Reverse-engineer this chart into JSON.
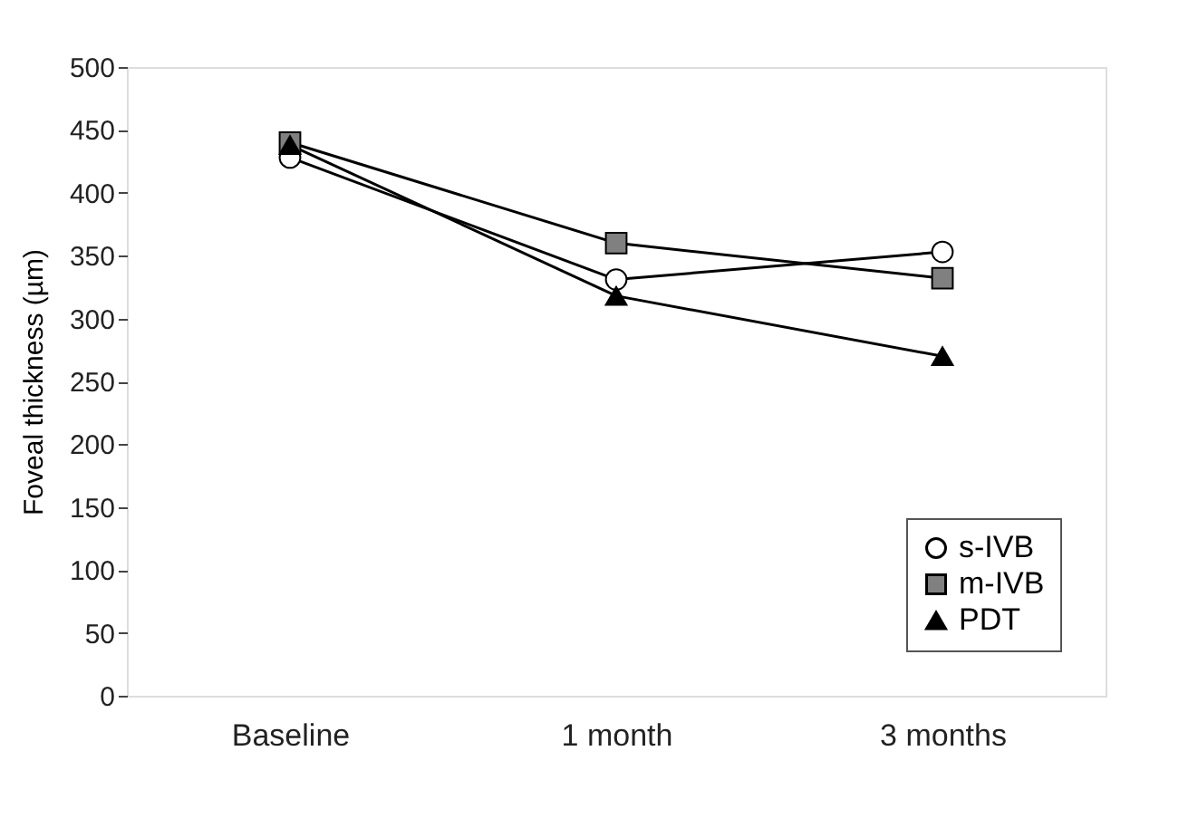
{
  "chart_data": {
    "type": "line",
    "ylabel": "Foveal thickness (µm)",
    "categories": [
      "Baseline",
      "1 month",
      "3 months"
    ],
    "series": [
      {
        "name": "s-IVB",
        "color": "#ffffff",
        "marker": "circle",
        "values": [
          428,
          331,
          353
        ]
      },
      {
        "name": "m-IVB",
        "color": "#808080",
        "marker": "square",
        "values": [
          440,
          360,
          332
        ]
      },
      {
        "name": "PDT",
        "color": "#000000",
        "marker": "triangle",
        "values": [
          438,
          318,
          270
        ]
      }
    ],
    "ylim": [
      0,
      500
    ],
    "yticks": [
      0,
      50,
      100,
      150,
      200,
      250,
      300,
      350,
      400,
      450,
      500
    ],
    "grid": false,
    "legend": "bottom right",
    "line_style": "solid"
  }
}
